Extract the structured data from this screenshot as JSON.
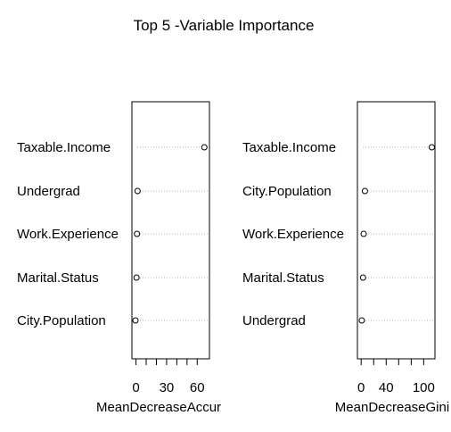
{
  "chart_data": {
    "type": "scatter",
    "title": "Top 5 -Variable Importance",
    "panels": [
      {
        "xlabel": "MeanDecreaseAccur",
        "xlim": [
          -4,
          72
        ],
        "xticks_minor": [
          0,
          10,
          20,
          30,
          40,
          50,
          60
        ],
        "xtick_labels": [
          0,
          30,
          60
        ],
        "categories": [
          "Taxable.Income",
          "Undergrad",
          "Work.Experience",
          "Marital.Status",
          "City.Population"
        ],
        "values": [
          67,
          1.5,
          1,
          0.5,
          -0.5
        ]
      },
      {
        "xlabel": "MeanDecreaseGini",
        "xlim": [
          -6,
          118
        ],
        "xticks_minor": [
          0,
          20,
          40,
          60,
          80,
          100
        ],
        "xtick_labels": [
          0,
          40,
          100
        ],
        "categories": [
          "Taxable.Income",
          "City.Population",
          "Work.Experience",
          "Marital.Status",
          "Undergrad"
        ],
        "values": [
          113,
          6,
          4,
          3,
          1
        ]
      }
    ]
  }
}
